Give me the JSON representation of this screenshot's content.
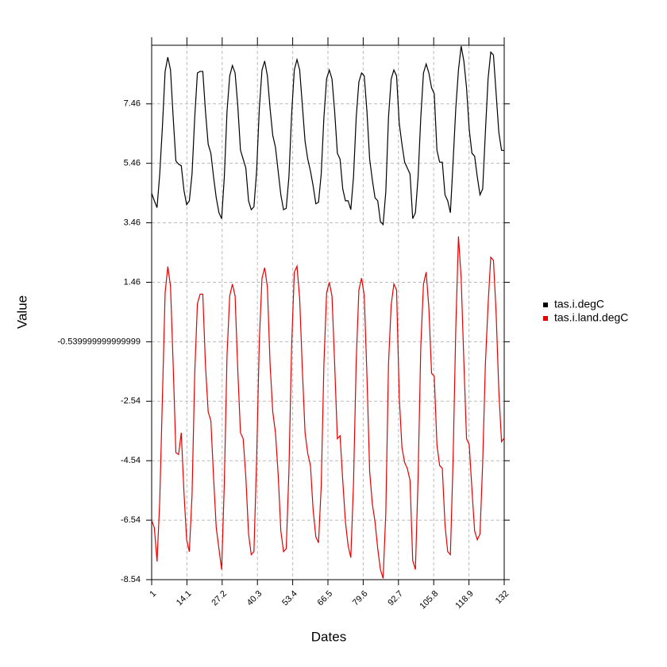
{
  "chart_data": {
    "type": "line",
    "x_label": "Dates",
    "y_label": "Value",
    "x": [
      1,
      2,
      3,
      4,
      5,
      6,
      7,
      8,
      9,
      10,
      11,
      12,
      13,
      14,
      15,
      16,
      17,
      18,
      19,
      20,
      21,
      22,
      23,
      24,
      25,
      26,
      27,
      28,
      29,
      30,
      31,
      32,
      33,
      34,
      35,
      36,
      37,
      38,
      39,
      40,
      41,
      42,
      43,
      44,
      45,
      46,
      47,
      48,
      49,
      50,
      51,
      52,
      53,
      54,
      55,
      56,
      57,
      58,
      59,
      60,
      61,
      62,
      63,
      64,
      65,
      66,
      67,
      68,
      69,
      70,
      71,
      72,
      73,
      74,
      75,
      76,
      77,
      78,
      79,
      80,
      81,
      82,
      83,
      84,
      85,
      86,
      87,
      88,
      89,
      90,
      91,
      92,
      93,
      94,
      95,
      96,
      97,
      98,
      99,
      100,
      101,
      102,
      103,
      104,
      105,
      106,
      107,
      108,
      109,
      110,
      111,
      112,
      113,
      114,
      115,
      116,
      117,
      118,
      119,
      120,
      121,
      122,
      123,
      124,
      125,
      126,
      127,
      128,
      129,
      130,
      131,
      132
    ],
    "series": [
      {
        "name": "tas.i.degC",
        "color": "#000000",
        "values": [
          4.45,
          4.2,
          3.97,
          5.1,
          6.7,
          8.55,
          9.03,
          8.6,
          7.0,
          5.54,
          5.43,
          5.38,
          4.55,
          4.07,
          4.2,
          5.1,
          7.0,
          8.5,
          8.55,
          8.55,
          7.2,
          6.1,
          5.8,
          5.0,
          4.3,
          3.8,
          3.6,
          5.0,
          7.2,
          8.4,
          8.75,
          8.5,
          7.4,
          5.9,
          5.6,
          5.3,
          4.2,
          3.9,
          4.0,
          5.2,
          7.3,
          8.6,
          8.9,
          8.4,
          7.3,
          6.4,
          6.0,
          5.2,
          4.4,
          3.9,
          3.95,
          5.0,
          7.1,
          8.6,
          8.95,
          8.6,
          7.4,
          6.2,
          5.6,
          5.2,
          4.7,
          4.1,
          4.15,
          5.1,
          7.0,
          8.3,
          8.6,
          8.3,
          7.2,
          5.8,
          5.6,
          4.6,
          4.2,
          4.2,
          3.9,
          5.0,
          7.0,
          8.2,
          8.5,
          8.4,
          7.2,
          5.6,
          4.9,
          4.3,
          4.2,
          3.5,
          3.4,
          4.5,
          7.0,
          8.3,
          8.6,
          8.4,
          6.8,
          6.1,
          5.5,
          5.3,
          5.1,
          3.6,
          3.8,
          5.0,
          7.0,
          8.5,
          8.8,
          8.5,
          8.0,
          7.8,
          5.9,
          5.5,
          5.5,
          4.4,
          4.2,
          3.8,
          5.5,
          7.3,
          8.6,
          9.4,
          8.9,
          8.0,
          6.6,
          5.8,
          5.7,
          5.0,
          4.4,
          4.6,
          6.5,
          8.3,
          9.2,
          9.1,
          7.8,
          6.5,
          5.9,
          5.89
        ]
      },
      {
        "name": "tas.i.land.degC",
        "color": "#e50000",
        "values": [
          -6.54,
          -6.8,
          -7.93,
          -5.9,
          -2.4,
          1.1,
          1.99,
          1.33,
          -1.34,
          -4.27,
          -4.33,
          -3.6,
          -5.6,
          -7.2,
          -7.6,
          -5.7,
          -1.6,
          0.74,
          1.06,
          1.06,
          -1.34,
          -2.9,
          -3.2,
          -5.1,
          -6.8,
          -7.5,
          -8.2,
          -5.3,
          -1.0,
          1.0,
          1.4,
          1.0,
          -1.5,
          -3.6,
          -3.8,
          -5.1,
          -7.0,
          -7.7,
          -7.6,
          -4.5,
          -0.5,
          1.6,
          1.95,
          1.3,
          -1.3,
          -2.9,
          -3.6,
          -5.0,
          -6.9,
          -7.6,
          -7.5,
          -4.9,
          -0.7,
          1.8,
          2.0,
          0.9,
          -1.5,
          -3.6,
          -4.3,
          -4.7,
          -6.2,
          -7.1,
          -7.3,
          -5.4,
          -1.3,
          1.1,
          1.46,
          1.0,
          -1.3,
          -3.8,
          -3.7,
          -5.2,
          -6.6,
          -7.4,
          -7.8,
          -5.3,
          -1.2,
          1.2,
          1.6,
          1.0,
          -1.7,
          -4.9,
          -6.0,
          -6.6,
          -7.5,
          -8.2,
          -8.5,
          -6.3,
          -1.3,
          0.7,
          1.4,
          1.2,
          -2.4,
          -4.1,
          -4.6,
          -4.8,
          -5.2,
          -7.9,
          -8.2,
          -5.1,
          -0.7,
          1.4,
          1.8,
          0.6,
          -1.6,
          -1.7,
          -4.0,
          -4.7,
          -4.8,
          -6.7,
          -7.6,
          -7.7,
          -4.5,
          -0.1,
          3.0,
          1.6,
          -1.2,
          -3.8,
          -4.0,
          -5.5,
          -6.9,
          -7.2,
          -7.0,
          -4.6,
          -1.3,
          0.7,
          2.3,
          2.2,
          0.4,
          -2.2,
          -3.9,
          -3.77
        ]
      }
    ],
    "xlim": [
      1,
      132
    ],
    "xticks": [
      1,
      14.1,
      27.2,
      40.3,
      53.4,
      66.5,
      79.6,
      92.7,
      105.8,
      118.9,
      132
    ],
    "ylim": [
      -8.54,
      9.43
    ],
    "yticks": [
      -8.54,
      -6.54,
      -4.54,
      -2.54,
      -0.539999999999999,
      1.46,
      3.46,
      5.46,
      7.46
    ],
    "grid": true,
    "legend": "right"
  }
}
